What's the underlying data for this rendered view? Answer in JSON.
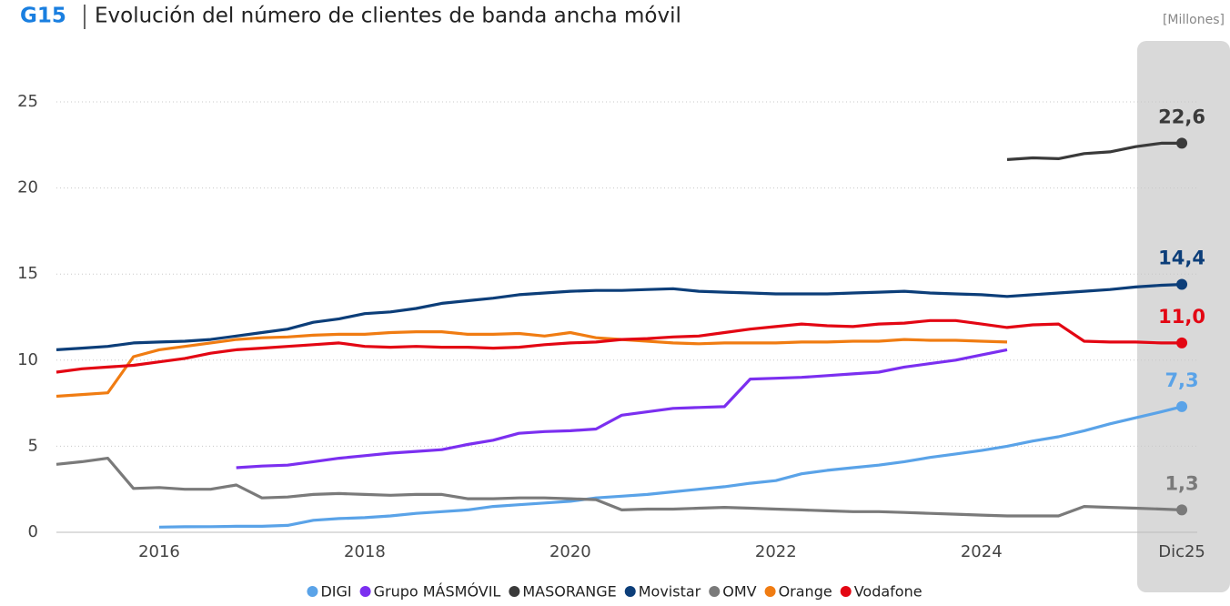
{
  "chart_data": {
    "type": "line",
    "label": "G15",
    "title": "Evolución del número de clientes de banda ancha móvil",
    "unit": "[Millones]",
    "x": [
      2015,
      2015.25,
      2015.5,
      2015.75,
      2016,
      2016.25,
      2016.5,
      2016.75,
      2017,
      2017.25,
      2017.5,
      2017.75,
      2018,
      2018.25,
      2018.5,
      2018.75,
      2019,
      2019.25,
      2019.5,
      2019.75,
      2020,
      2020.25,
      2020.5,
      2020.75,
      2021,
      2021.25,
      2021.5,
      2021.75,
      2022,
      2022.25,
      2022.5,
      2022.75,
      2023,
      2023.25,
      2023.5,
      2023.75,
      2024,
      2024.25,
      2024.5,
      2024.75,
      2025,
      2025.25,
      2025.5,
      2025.75,
      2025.95
    ],
    "xlim": [
      2015,
      2026.1
    ],
    "xticks": [
      2016,
      2018,
      2020,
      2022,
      2024,
      {
        "value": 2025.95,
        "label": "Dic25"
      }
    ],
    "ylim": [
      0,
      25
    ],
    "yticks": [
      0,
      5,
      10,
      15,
      20,
      25
    ],
    "grid": true,
    "legend": "bottom",
    "series": [
      {
        "name": "DIGI",
        "color": "#5aa3e8",
        "values": [
          null,
          null,
          null,
          null,
          0.3,
          0.32,
          0.33,
          0.35,
          0.35,
          0.4,
          0.7,
          0.8,
          0.85,
          0.95,
          1.1,
          1.2,
          1.3,
          1.5,
          1.6,
          1.7,
          1.8,
          2.0,
          2.1,
          2.2,
          2.35,
          2.5,
          2.65,
          2.85,
          3.0,
          3.4,
          3.6,
          3.75,
          3.9,
          4.1,
          4.35,
          4.55,
          4.75,
          5.0,
          5.3,
          5.55,
          5.9,
          6.3,
          6.65,
          7.0,
          7.3
        ],
        "value_labels": [
          null,
          null,
          null,
          null,
          null,
          null,
          null,
          null,
          null,
          null,
          null,
          null,
          null,
          null,
          null,
          null,
          null,
          null,
          null,
          null,
          null,
          null,
          null,
          null,
          null,
          null,
          null,
          null,
          null,
          null,
          null,
          null,
          null,
          null,
          null,
          null,
          null,
          null,
          null,
          null,
          null,
          null,
          null,
          null,
          "7,3"
        ]
      },
      {
        "name": "Grupo MÁSMÓVIL",
        "color": "#7b2ff0",
        "values": [
          null,
          null,
          null,
          null,
          null,
          null,
          null,
          3.75,
          3.85,
          3.9,
          4.1,
          4.3,
          4.45,
          4.6,
          4.7,
          4.8,
          5.1,
          5.35,
          5.75,
          5.85,
          5.9,
          6.0,
          6.8,
          7.0,
          7.2,
          7.25,
          7.3,
          8.9,
          8.95,
          9.0,
          9.1,
          9.2,
          9.3,
          9.6,
          9.8,
          10.0,
          10.3,
          10.6,
          null,
          null,
          null,
          null,
          null,
          null,
          null
        ]
      },
      {
        "name": "MASORANGE",
        "color": "#3a3a3a",
        "values": [
          null,
          null,
          null,
          null,
          null,
          null,
          null,
          null,
          null,
          null,
          null,
          null,
          null,
          null,
          null,
          null,
          null,
          null,
          null,
          null,
          null,
          null,
          null,
          null,
          null,
          null,
          null,
          null,
          null,
          null,
          null,
          null,
          null,
          null,
          null,
          null,
          null,
          21.65,
          21.75,
          21.7,
          22.0,
          22.1,
          22.4,
          22.6,
          22.6
        ],
        "value_labels": [
          null,
          null,
          null,
          null,
          null,
          null,
          null,
          null,
          null,
          null,
          null,
          null,
          null,
          null,
          null,
          null,
          null,
          null,
          null,
          null,
          null,
          null,
          null,
          null,
          null,
          null,
          null,
          null,
          null,
          null,
          null,
          null,
          null,
          null,
          null,
          null,
          null,
          null,
          null,
          null,
          null,
          null,
          null,
          null,
          "22,6"
        ]
      },
      {
        "name": "Movistar",
        "color": "#0c3e79",
        "values": [
          10.6,
          10.7,
          10.8,
          11.0,
          11.05,
          11.1,
          11.2,
          11.4,
          11.6,
          11.8,
          12.2,
          12.4,
          12.7,
          12.8,
          13.0,
          13.3,
          13.45,
          13.6,
          13.8,
          13.9,
          14.0,
          14.05,
          14.05,
          14.1,
          14.15,
          14.0,
          13.95,
          13.9,
          13.85,
          13.85,
          13.85,
          13.9,
          13.95,
          14.0,
          13.9,
          13.85,
          13.8,
          13.7,
          13.8,
          13.9,
          14.0,
          14.1,
          14.25,
          14.35,
          14.4
        ],
        "value_labels": [
          null,
          null,
          null,
          null,
          null,
          null,
          null,
          null,
          null,
          null,
          null,
          null,
          null,
          null,
          null,
          null,
          null,
          null,
          null,
          null,
          null,
          null,
          null,
          null,
          null,
          null,
          null,
          null,
          null,
          null,
          null,
          null,
          null,
          null,
          null,
          null,
          null,
          null,
          null,
          null,
          null,
          null,
          null,
          null,
          "14,4"
        ]
      },
      {
        "name": "OMV",
        "color": "#7a7a7a",
        "values": [
          3.95,
          4.1,
          4.3,
          2.55,
          2.6,
          2.5,
          2.5,
          2.75,
          2.0,
          2.05,
          2.2,
          2.25,
          2.2,
          2.15,
          2.2,
          2.2,
          1.95,
          1.95,
          2.0,
          2.0,
          1.95,
          1.9,
          1.3,
          1.35,
          1.35,
          1.4,
          1.45,
          1.4,
          1.35,
          1.3,
          1.25,
          1.2,
          1.2,
          1.15,
          1.1,
          1.05,
          1.0,
          0.95,
          0.95,
          0.95,
          1.5,
          1.45,
          1.4,
          1.35,
          1.3
        ],
        "value_labels": [
          null,
          null,
          null,
          null,
          null,
          null,
          null,
          null,
          null,
          null,
          null,
          null,
          null,
          null,
          null,
          null,
          null,
          null,
          null,
          null,
          null,
          null,
          null,
          null,
          null,
          null,
          null,
          null,
          null,
          null,
          null,
          null,
          null,
          null,
          null,
          null,
          null,
          null,
          null,
          null,
          null,
          null,
          null,
          null,
          "1,3"
        ]
      },
      {
        "name": "Orange",
        "color": "#f07c12",
        "values": [
          7.9,
          8.0,
          8.1,
          10.2,
          10.6,
          10.8,
          11.0,
          11.2,
          11.3,
          11.35,
          11.45,
          11.5,
          11.5,
          11.6,
          11.65,
          11.65,
          11.5,
          11.5,
          11.55,
          11.4,
          11.6,
          11.3,
          11.2,
          11.1,
          11.0,
          10.95,
          11.0,
          11.0,
          11.0,
          11.05,
          11.05,
          11.1,
          11.1,
          11.2,
          11.15,
          11.15,
          11.1,
          11.05,
          null,
          null,
          null,
          null,
          null,
          null,
          null
        ]
      },
      {
        "name": "Vodafone",
        "color": "#e30613",
        "values": [
          9.3,
          9.5,
          9.6,
          9.7,
          9.9,
          10.1,
          10.4,
          10.6,
          10.7,
          10.8,
          10.9,
          11.0,
          10.8,
          10.75,
          10.8,
          10.75,
          10.75,
          10.7,
          10.75,
          10.9,
          11.0,
          11.05,
          11.2,
          11.25,
          11.35,
          11.4,
          11.6,
          11.8,
          11.95,
          12.1,
          12.0,
          11.95,
          12.1,
          12.15,
          12.3,
          12.3,
          12.1,
          11.9,
          12.05,
          12.1,
          11.1,
          11.05,
          11.05,
          11.0,
          11.0
        ],
        "value_labels": [
          null,
          null,
          null,
          null,
          null,
          null,
          null,
          null,
          null,
          null,
          null,
          null,
          null,
          null,
          null,
          null,
          null,
          null,
          null,
          null,
          null,
          null,
          null,
          null,
          null,
          null,
          null,
          null,
          null,
          null,
          null,
          null,
          null,
          null,
          null,
          null,
          null,
          null,
          null,
          null,
          null,
          null,
          null,
          null,
          "11,0"
        ]
      }
    ]
  }
}
